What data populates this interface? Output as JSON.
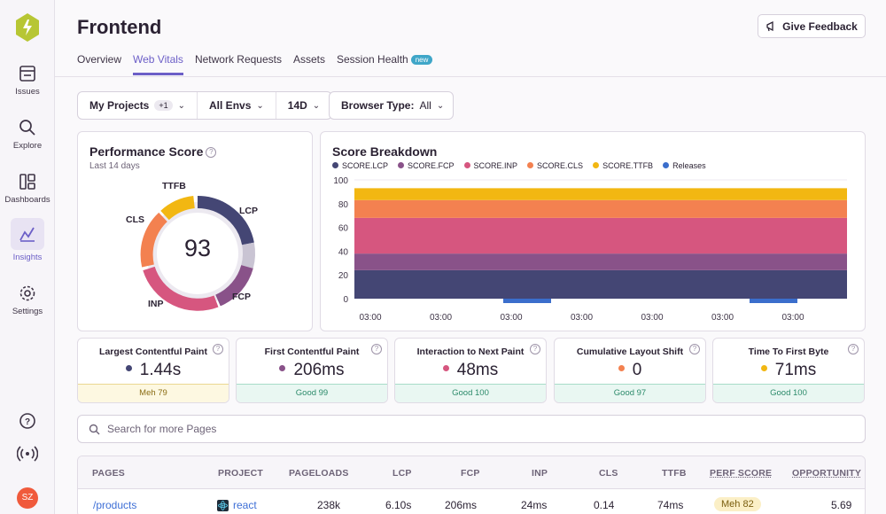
{
  "sidebar": {
    "items": [
      {
        "label": "Issues",
        "icon": "issues-icon"
      },
      {
        "label": "Explore",
        "icon": "search-icon"
      },
      {
        "label": "Dashboards",
        "icon": "dashboards-icon"
      },
      {
        "label": "Insights",
        "icon": "insights-icon",
        "active": true
      },
      {
        "label": "Settings",
        "icon": "gear-icon"
      }
    ],
    "avatar": "SZ"
  },
  "header": {
    "title": "Frontend",
    "feedback_label": "Give Feedback",
    "tabs": [
      {
        "label": "Overview"
      },
      {
        "label": "Web Vitals",
        "active": true
      },
      {
        "label": "Network Requests"
      },
      {
        "label": "Assets"
      },
      {
        "label": "Session Health",
        "badge": "new"
      }
    ]
  },
  "filters": {
    "projects": "My Projects",
    "projects_extra": "+1",
    "envs": "All Envs",
    "period": "14D",
    "browser_label": "Browser Type:",
    "browser_value": "All"
  },
  "score_panel": {
    "title": "Performance Score",
    "subtitle": "Last 14 days",
    "score": "93",
    "labels": {
      "lcp": "LCP",
      "fcp": "FCP",
      "inp": "INP",
      "cls": "CLS",
      "ttfb": "TTFB"
    }
  },
  "breakdown_panel": {
    "title": "Score Breakdown"
  },
  "chart_data": {
    "type": "area",
    "title": "Score Breakdown",
    "stacked": true,
    "x": [
      "03:00",
      "03:00",
      "03:00",
      "03:00",
      "03:00",
      "03:00",
      "03:00"
    ],
    "ylim": [
      0,
      100
    ],
    "yticks": [
      0,
      20,
      40,
      60,
      80,
      100
    ],
    "series": [
      {
        "name": "SCORE.LCP",
        "color": "#444674",
        "values": [
          24,
          24,
          24,
          24,
          24,
          24,
          24
        ]
      },
      {
        "name": "SCORE.FCP",
        "color": "#895289",
        "values": [
          14,
          14,
          14,
          14,
          14,
          14,
          14
        ]
      },
      {
        "name": "SCORE.INP",
        "color": "#d6567f",
        "values": [
          30,
          30,
          30,
          30,
          30,
          30,
          30
        ]
      },
      {
        "name": "SCORE.CLS",
        "color": "#f38150",
        "values": [
          15,
          15,
          15,
          15,
          15,
          15,
          15
        ]
      },
      {
        "name": "SCORE.TTFB",
        "color": "#f2b712",
        "values": [
          10,
          10,
          10,
          10,
          10,
          10,
          10
        ]
      }
    ],
    "releases_label": "Releases",
    "releases_color": "#3b6ecc"
  },
  "metrics": [
    {
      "name": "Largest Contentful Paint",
      "value": "1.44s",
      "dot": "#444674",
      "status": "Meh 79",
      "kind": "meh"
    },
    {
      "name": "First Contentful Paint",
      "value": "206ms",
      "dot": "#895289",
      "status": "Good 99",
      "kind": "good"
    },
    {
      "name": "Interaction to Next Paint",
      "value": "48ms",
      "dot": "#d6567f",
      "status": "Good 100",
      "kind": "good"
    },
    {
      "name": "Cumulative Layout Shift",
      "value": "0",
      "dot": "#f38150",
      "status": "Good 97",
      "kind": "good"
    },
    {
      "name": "Time To First Byte",
      "value": "71ms",
      "dot": "#f2b712",
      "status": "Good 100",
      "kind": "good"
    }
  ],
  "search": {
    "placeholder": "Search for more Pages"
  },
  "table": {
    "headers": [
      "PAGES",
      "PROJECT",
      "PAGELOADS",
      "LCP",
      "FCP",
      "INP",
      "CLS",
      "TTFB",
      "PERF SCORE",
      "OPPORTUNITY"
    ],
    "rows": [
      {
        "page": "/products",
        "project": "react",
        "pageloads": "238k",
        "lcp": "6.10s",
        "fcp": "206ms",
        "inp": "24ms",
        "cls": "0.14",
        "ttfb": "74ms",
        "perf": "Meh 82",
        "opportunity": "5.69"
      }
    ]
  }
}
